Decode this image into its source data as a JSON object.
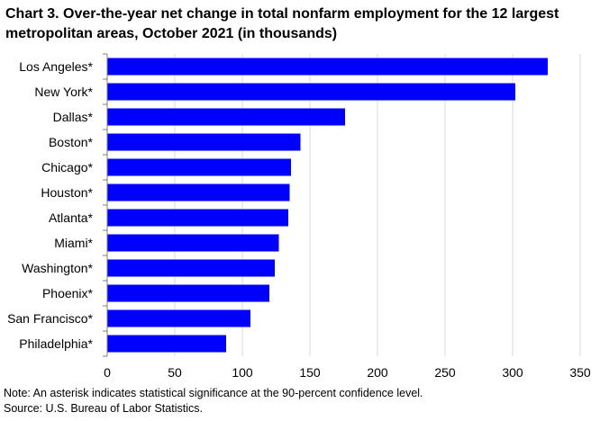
{
  "title": "Chart 3. Over-the-year net change in total nonfarm  employment for the 12 largest metropolitan areas, October 2021 (in thousands)",
  "note": "Note: An asterisk indicates statistical significance at the 90-percent confidence level.",
  "source": "Source: U.S. Bureau of Labor Statistics.",
  "chart_data": {
    "type": "bar",
    "orientation": "horizontal",
    "title": "Chart 3. Over-the-year net change in total nonfarm  employment for the 12 largest metropolitan areas, October 2021 (in thousands)",
    "xlabel": "",
    "ylabel": "",
    "categories": [
      "Los Angeles*",
      "New York*",
      "Dallas*",
      "Boston*",
      "Chicago*",
      "Houston*",
      "Atlanta*",
      "Miami*",
      "Washington*",
      "Phoenix*",
      "San Francisco*",
      "Philadelphia*"
    ],
    "values": [
      326,
      302,
      176,
      143,
      136,
      135,
      134,
      127,
      124,
      120,
      106,
      88
    ],
    "xlim": [
      0,
      350
    ],
    "xticks": [
      "0",
      "50",
      "100",
      "150",
      "200",
      "250",
      "300",
      "350"
    ],
    "grid": "vertical",
    "bar_color": "#0000ff",
    "grid_color": "#d9d9d9"
  }
}
